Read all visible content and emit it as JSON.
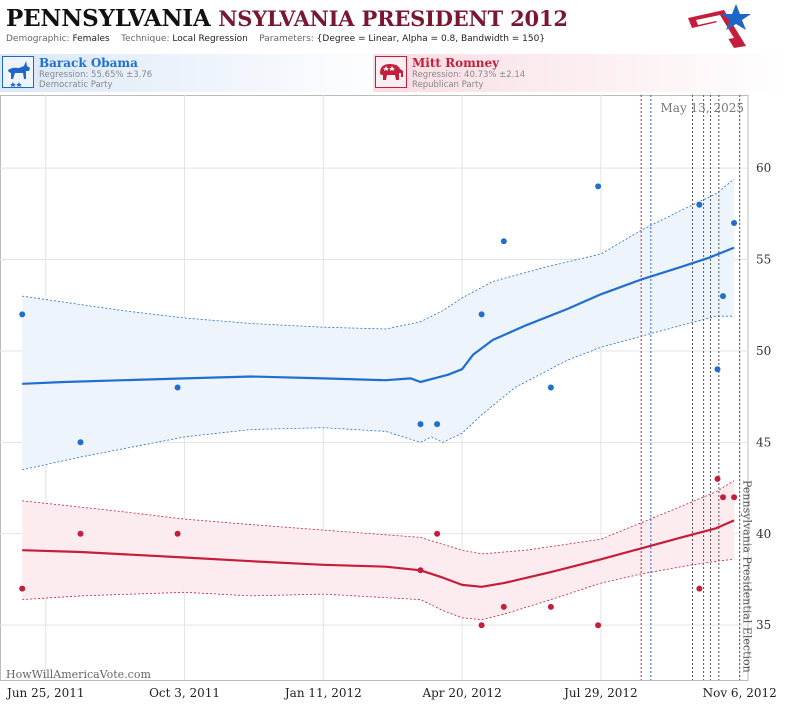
{
  "header": {
    "title_state": "PENNSYLVANIA",
    "title_rest": "NSYLVANIA PRESIDENT 2012",
    "demographic_label": "Demographic:",
    "demographic_value": "Females",
    "technique_label": "Technique:",
    "technique_value": "Local Regression",
    "parameters_label": "Parameters:",
    "parameters_value": "{Degree = Linear, Alpha = 0.8, Bandwidth = 150}"
  },
  "candidates": [
    {
      "name": "Barack Obama",
      "regression": "Regression: 55.65% ±3.76",
      "party": "Democratic Party",
      "icon": "donkey-icon",
      "color": "#1f6fd0"
    },
    {
      "name": "Mitt Romney",
      "regression": "Regression: 40.73% ±2.14",
      "party": "Republican Party",
      "icon": "elephant-icon",
      "color": "#c41e3a"
    }
  ],
  "colors": {
    "obama": "#1f6fd0",
    "romney": "#c41e3a",
    "band_obama": "#eef4fb",
    "band_romney": "#fdecef"
  },
  "chart_data": {
    "type": "scatter",
    "date_label": "May 13, 2025",
    "election_label": "Pennsylvania Presidential Election",
    "watermark": "HowWillAmericaVote.com",
    "x_ticks": [
      {
        "date": "2011-06-25",
        "label": "Jun 25, 2011"
      },
      {
        "date": "2011-10-03",
        "label": "Oct 3, 2011"
      },
      {
        "date": "2012-01-11",
        "label": "Jan 11, 2012"
      },
      {
        "date": "2012-04-20",
        "label": "Apr 20, 2012"
      },
      {
        "date": "2012-07-29",
        "label": "Jul 29, 2012"
      },
      {
        "date": "2012-11-06",
        "label": "Nov 6, 2012"
      }
    ],
    "xlim": [
      "2011-05-23",
      "2012-11-12"
    ],
    "ylim": [
      32,
      64
    ],
    "y_ticks": [
      35,
      40,
      45,
      50,
      55,
      60
    ],
    "grid": true,
    "event_lines": [
      {
        "date": "2012-08-27",
        "color": "#c41e3a"
      },
      {
        "date": "2012-09-03",
        "color": "#1f6fd0"
      },
      {
        "date": "2012-10-03",
        "color": "#555555"
      },
      {
        "date": "2012-10-11",
        "color": "#555555"
      },
      {
        "date": "2012-10-16",
        "color": "#555555"
      },
      {
        "date": "2012-10-22",
        "color": "#555555"
      },
      {
        "date": "2012-11-06",
        "color": "#555555"
      }
    ],
    "series": [
      {
        "name": "Barack Obama",
        "color": "#1f6fd0",
        "points": [
          {
            "date": "2011-06-08",
            "value": 52
          },
          {
            "date": "2011-07-20",
            "value": 45
          },
          {
            "date": "2011-09-28",
            "value": 48
          },
          {
            "date": "2012-03-21",
            "value": 46
          },
          {
            "date": "2012-04-02",
            "value": 46
          },
          {
            "date": "2012-05-04",
            "value": 52
          },
          {
            "date": "2012-05-20",
            "value": 56
          },
          {
            "date": "2012-06-23",
            "value": 48
          },
          {
            "date": "2012-07-27",
            "value": 59
          },
          {
            "date": "2012-10-08",
            "value": 58
          },
          {
            "date": "2012-10-21",
            "value": 49
          },
          {
            "date": "2012-10-25",
            "value": 53
          },
          {
            "date": "2012-11-02",
            "value": 57
          }
        ],
        "trend": [
          {
            "date": "2011-06-08",
            "value": 48.2
          },
          {
            "date": "2011-07-08",
            "value": 48.3
          },
          {
            "date": "2011-08-20",
            "value": 48.4
          },
          {
            "date": "2011-10-03",
            "value": 48.5
          },
          {
            "date": "2011-11-20",
            "value": 48.6
          },
          {
            "date": "2012-01-11",
            "value": 48.5
          },
          {
            "date": "2012-02-25",
            "value": 48.4
          },
          {
            "date": "2012-03-14",
            "value": 48.5
          },
          {
            "date": "2012-03-21",
            "value": 48.3
          },
          {
            "date": "2012-04-10",
            "value": 48.7
          },
          {
            "date": "2012-04-20",
            "value": 49.0
          },
          {
            "date": "2012-04-28",
            "value": 49.8
          },
          {
            "date": "2012-05-12",
            "value": 50.6
          },
          {
            "date": "2012-06-05",
            "value": 51.4
          },
          {
            "date": "2012-07-05",
            "value": 52.3
          },
          {
            "date": "2012-07-29",
            "value": 53.1
          },
          {
            "date": "2012-08-27",
            "value": 53.9
          },
          {
            "date": "2012-09-25",
            "value": 54.6
          },
          {
            "date": "2012-10-15",
            "value": 55.1
          },
          {
            "date": "2012-11-02",
            "value": 55.65
          }
        ],
        "band_upper": [
          {
            "date": "2011-06-08",
            "value": 53.0
          },
          {
            "date": "2011-08-20",
            "value": 52.2
          },
          {
            "date": "2011-10-03",
            "value": 51.8
          },
          {
            "date": "2011-11-20",
            "value": 51.5
          },
          {
            "date": "2012-01-11",
            "value": 51.3
          },
          {
            "date": "2012-02-25",
            "value": 51.2
          },
          {
            "date": "2012-03-21",
            "value": 51.6
          },
          {
            "date": "2012-04-06",
            "value": 52.2
          },
          {
            "date": "2012-04-20",
            "value": 52.9
          },
          {
            "date": "2012-05-12",
            "value": 53.8
          },
          {
            "date": "2012-06-20",
            "value": 54.6
          },
          {
            "date": "2012-07-29",
            "value": 55.3
          },
          {
            "date": "2012-08-27",
            "value": 56.6
          },
          {
            "date": "2012-09-25",
            "value": 57.7
          },
          {
            "date": "2012-10-20",
            "value": 58.6
          },
          {
            "date": "2012-11-02",
            "value": 59.4
          }
        ],
        "band_lower": [
          {
            "date": "2011-06-08",
            "value": 43.5
          },
          {
            "date": "2011-07-20",
            "value": 44.2
          },
          {
            "date": "2011-10-03",
            "value": 45.3
          },
          {
            "date": "2011-11-20",
            "value": 45.7
          },
          {
            "date": "2012-01-11",
            "value": 45.8
          },
          {
            "date": "2012-02-25",
            "value": 45.6
          },
          {
            "date": "2012-03-21",
            "value": 45.0
          },
          {
            "date": "2012-03-29",
            "value": 45.3
          },
          {
            "date": "2012-04-06",
            "value": 45.0
          },
          {
            "date": "2012-04-20",
            "value": 45.5
          },
          {
            "date": "2012-05-04",
            "value": 46.5
          },
          {
            "date": "2012-05-28",
            "value": 48.0
          },
          {
            "date": "2012-07-05",
            "value": 49.5
          },
          {
            "date": "2012-07-29",
            "value": 50.2
          },
          {
            "date": "2012-08-27",
            "value": 50.8
          },
          {
            "date": "2012-09-25",
            "value": 51.4
          },
          {
            "date": "2012-10-20",
            "value": 51.9
          },
          {
            "date": "2012-11-02",
            "value": 51.9
          }
        ]
      },
      {
        "name": "Mitt Romney",
        "color": "#c41e3a",
        "points": [
          {
            "date": "2011-06-08",
            "value": 37
          },
          {
            "date": "2011-07-20",
            "value": 40
          },
          {
            "date": "2011-09-28",
            "value": 40
          },
          {
            "date": "2012-03-21",
            "value": 38
          },
          {
            "date": "2012-04-02",
            "value": 40
          },
          {
            "date": "2012-05-04",
            "value": 35
          },
          {
            "date": "2012-05-20",
            "value": 36
          },
          {
            "date": "2012-06-23",
            "value": 36
          },
          {
            "date": "2012-07-27",
            "value": 35
          },
          {
            "date": "2012-10-08",
            "value": 37
          },
          {
            "date": "2012-10-21",
            "value": 43
          },
          {
            "date": "2012-10-25",
            "value": 42
          },
          {
            "date": "2012-11-02",
            "value": 42
          }
        ],
        "trend": [
          {
            "date": "2011-06-08",
            "value": 39.1
          },
          {
            "date": "2011-07-20",
            "value": 39.0
          },
          {
            "date": "2011-10-03",
            "value": 38.7
          },
          {
            "date": "2011-11-20",
            "value": 38.5
          },
          {
            "date": "2012-01-11",
            "value": 38.3
          },
          {
            "date": "2012-02-25",
            "value": 38.2
          },
          {
            "date": "2012-03-21",
            "value": 38.0
          },
          {
            "date": "2012-04-06",
            "value": 37.6
          },
          {
            "date": "2012-04-20",
            "value": 37.2
          },
          {
            "date": "2012-05-04",
            "value": 37.1
          },
          {
            "date": "2012-05-20",
            "value": 37.3
          },
          {
            "date": "2012-06-23",
            "value": 37.9
          },
          {
            "date": "2012-07-29",
            "value": 38.6
          },
          {
            "date": "2012-08-27",
            "value": 39.2
          },
          {
            "date": "2012-09-25",
            "value": 39.8
          },
          {
            "date": "2012-10-20",
            "value": 40.3
          },
          {
            "date": "2012-11-02",
            "value": 40.73
          }
        ],
        "band_upper": [
          {
            "date": "2011-06-08",
            "value": 41.8
          },
          {
            "date": "2011-08-20",
            "value": 41.2
          },
          {
            "date": "2011-10-03",
            "value": 40.8
          },
          {
            "date": "2011-11-20",
            "value": 40.5
          },
          {
            "date": "2012-01-11",
            "value": 40.2
          },
          {
            "date": "2012-03-21",
            "value": 39.8
          },
          {
            "date": "2012-04-20",
            "value": 39.1
          },
          {
            "date": "2012-05-04",
            "value": 38.9
          },
          {
            "date": "2012-06-05",
            "value": 39.1
          },
          {
            "date": "2012-07-29",
            "value": 39.7
          },
          {
            "date": "2012-08-27",
            "value": 40.6
          },
          {
            "date": "2012-09-25",
            "value": 41.5
          },
          {
            "date": "2012-10-20",
            "value": 42.3
          },
          {
            "date": "2012-11-02",
            "value": 42.9
          }
        ],
        "band_lower": [
          {
            "date": "2011-06-08",
            "value": 36.4
          },
          {
            "date": "2011-07-20",
            "value": 36.6
          },
          {
            "date": "2011-10-03",
            "value": 36.8
          },
          {
            "date": "2011-11-20",
            "value": 36.6
          },
          {
            "date": "2012-01-11",
            "value": 36.7
          },
          {
            "date": "2012-03-21",
            "value": 36.4
          },
          {
            "date": "2012-04-06",
            "value": 35.8
          },
          {
            "date": "2012-04-20",
            "value": 35.4
          },
          {
            "date": "2012-05-04",
            "value": 35.3
          },
          {
            "date": "2012-05-20",
            "value": 35.6
          },
          {
            "date": "2012-06-23",
            "value": 36.4
          },
          {
            "date": "2012-07-29",
            "value": 37.3
          },
          {
            "date": "2012-08-27",
            "value": 37.8
          },
          {
            "date": "2012-09-25",
            "value": 38.2
          },
          {
            "date": "2012-10-20",
            "value": 38.5
          },
          {
            "date": "2012-11-02",
            "value": 38.6
          }
        ]
      }
    ]
  }
}
